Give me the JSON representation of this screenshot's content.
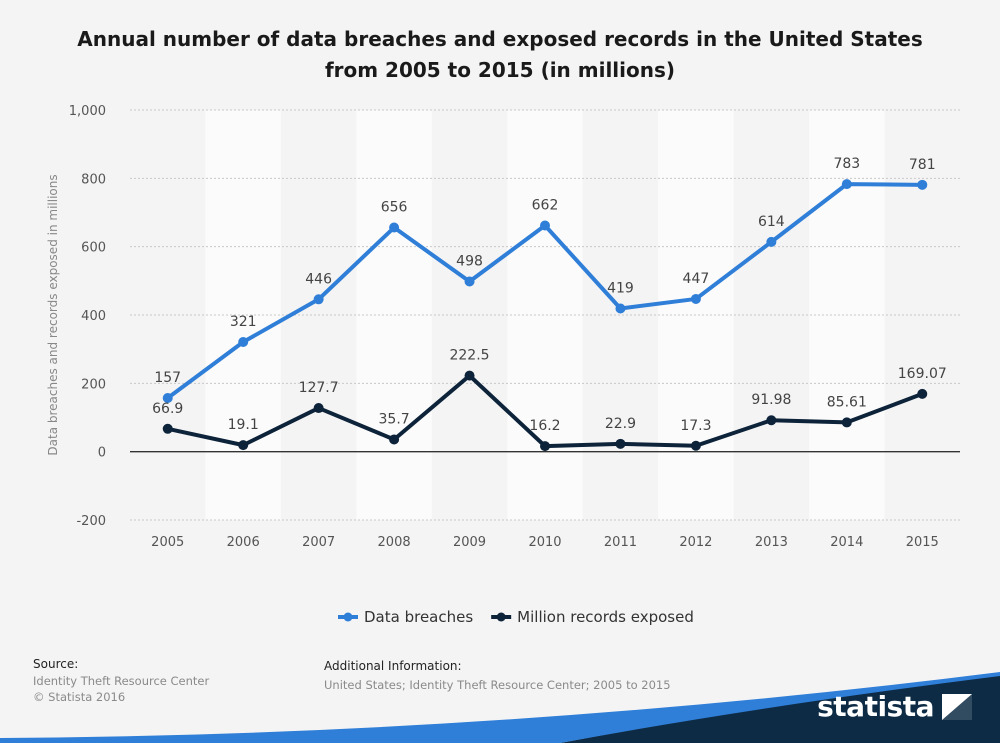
{
  "chart_data": {
    "type": "line",
    "title": "Annual number of data breaches and exposed records in the United States from 2005 to 2015 (in millions)",
    "ylabel": "Data breaches and records exposed in millions",
    "xlabel": "",
    "ylim": [
      -200,
      1000
    ],
    "yticks": [
      -200,
      0,
      200,
      400,
      600,
      800,
      1000
    ],
    "ytick_labels": [
      "-200",
      "0",
      "200",
      "400",
      "600",
      "800",
      "1,000"
    ],
    "x": [
      "2005",
      "2006",
      "2007",
      "2008",
      "2009",
      "2010",
      "2011",
      "2012",
      "2013",
      "2014",
      "2015"
    ],
    "series": [
      {
        "name": "Data breaches",
        "color": "#2f7ed8",
        "values": [
          157,
          321,
          446,
          656,
          498,
          662,
          419,
          447,
          614,
          783,
          781
        ],
        "labels": [
          "157",
          "321",
          "446",
          "656",
          "498",
          "662",
          "419",
          "447",
          "614",
          "783",
          "781"
        ]
      },
      {
        "name": "Million records exposed",
        "color": "#0d233a",
        "values": [
          66.9,
          19.1,
          127.7,
          35.7,
          222.5,
          16.2,
          22.9,
          17.3,
          91.98,
          85.61,
          169.07
        ],
        "labels": [
          "66.9",
          "19.1",
          "127.7",
          "35.7",
          "222.5",
          "16.2",
          "22.9",
          "17.3",
          "91.98",
          "85.61",
          "169.07"
        ]
      }
    ],
    "grid": true,
    "legend_position": "bottom-center"
  },
  "footer": {
    "source_heading": "Source:",
    "source_line1": "Identity Theft Resource Center",
    "source_line2": "© Statista 2016",
    "info_heading": "Additional Information:",
    "info_line": "United States; Identity Theft Resource Center; 2005 to 2015"
  },
  "brand": {
    "name": "statista"
  }
}
